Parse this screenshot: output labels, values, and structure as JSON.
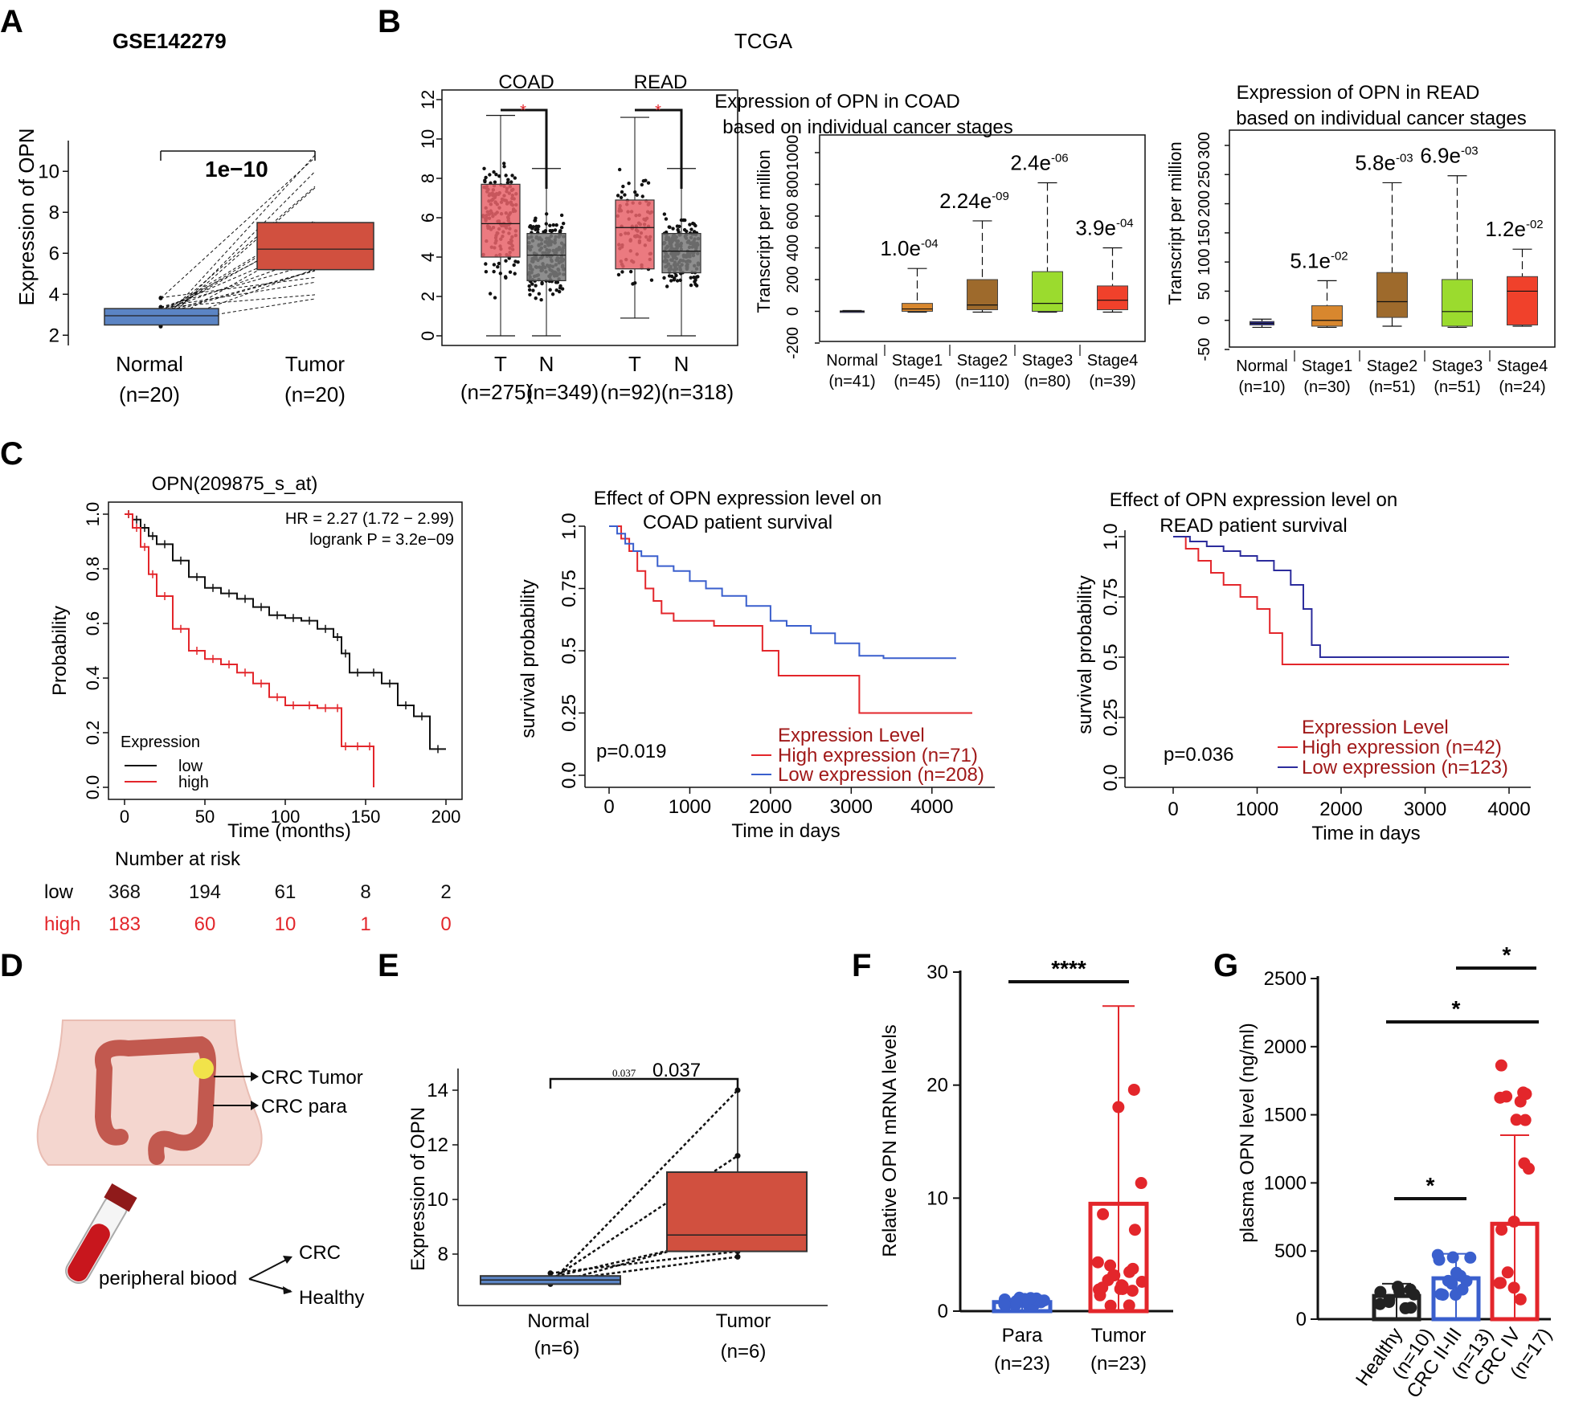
{
  "colors": {
    "red": "#e3262b",
    "darkred": "#c0392b",
    "blue": "#3a5fcd",
    "navy": "#2c2c9c",
    "grey": "#7a7a7a",
    "boxred": "#d1503f",
    "boxblue": "#5b84c4",
    "pink": "#e7636a",
    "orange": "#d8872e",
    "brown": "#9e6a2c",
    "lime": "#9bdb2e",
    "tomato": "#f0412b",
    "black": "#111111"
  },
  "panel_labels": [
    "A",
    "B",
    "C",
    "D",
    "E",
    "F",
    "G"
  ],
  "panelB": {
    "header": "TCGA"
  },
  "panelD": {
    "labels": {
      "tumor": "CRC Tumor",
      "para": "CRC para",
      "blood": "peripheral biood",
      "crc": "CRC",
      "healthy": "Healthy"
    }
  },
  "chart_data": [
    {
      "id": "A",
      "type": "paired-box",
      "title": "GSE142279",
      "ylabel": "Expression of  OPN",
      "ylim": [
        1.5,
        11.5
      ],
      "yticks": [
        2,
        4,
        6,
        8,
        10
      ],
      "categories": [
        "Normal",
        "Tumor"
      ],
      "n_labels": [
        "(n=20)",
        "(n=20)"
      ],
      "stat": "1e−10",
      "boxes": [
        {
          "q1": 2.5,
          "median": 2.95,
          "q3": 3.3,
          "min": 2.3,
          "max": 3.9
        },
        {
          "q1": 5.2,
          "median": 6.2,
          "q3": 7.5,
          "min": 3.4,
          "max": 10.9
        }
      ]
    },
    {
      "id": "B1",
      "type": "box",
      "subtitles": [
        "COAD",
        "READ"
      ],
      "ylim": [
        0,
        12
      ],
      "yticks": [
        0,
        2,
        4,
        6,
        8,
        10,
        12
      ],
      "categories": [
        "T",
        "N",
        "T",
        "N"
      ],
      "n_labels": [
        "(n=275)",
        "(n=349)",
        "(n=92)",
        "(n=318)"
      ],
      "boxes": [
        {
          "min": 0,
          "q1": 4.0,
          "median": 5.7,
          "q3": 7.7,
          "max": 11.2
        },
        {
          "min": 0,
          "q1": 2.8,
          "median": 4.1,
          "q3": 5.2,
          "max": 8.5
        },
        {
          "min": 0.9,
          "q1": 3.4,
          "median": 5.5,
          "q3": 6.9,
          "max": 11.1
        },
        {
          "min": 0,
          "q1": 3.2,
          "median": 4.3,
          "q3": 5.2,
          "max": 8.5
        }
      ],
      "sig_marks": [
        "*",
        "*"
      ]
    },
    {
      "id": "B2",
      "type": "box",
      "title": "Expression of OPN in COAD\nbased on individual cancer stages",
      "ylabel": "Transcript per million",
      "ylim": [
        -200,
        1000
      ],
      "yticks": [
        -200,
        0,
        200,
        400,
        600,
        800,
        1000
      ],
      "categories": [
        "Normal",
        "Stage1",
        "Stage2",
        "Stage3",
        "Stage4"
      ],
      "n_labels": [
        "(n=41)",
        "(n=45)",
        "(n=110)",
        "(n=80)",
        "(n=39)"
      ],
      "boxes": [
        {
          "min": -5,
          "q1": -3,
          "median": 0,
          "q3": 3,
          "max": 5
        },
        {
          "min": -5,
          "q1": 0,
          "median": 15,
          "q3": 50,
          "max": 270
        },
        {
          "min": -5,
          "q1": 10,
          "median": 40,
          "q3": 200,
          "max": 570
        },
        {
          "min": -5,
          "q1": 0,
          "median": 50,
          "q3": 250,
          "max": 810
        },
        {
          "min": -5,
          "q1": 10,
          "median": 70,
          "q3": 160,
          "max": 400
        }
      ],
      "pvalues": [
        null,
        "1.0e-04",
        "2.24e-09",
        "2.4e-06",
        "3.9e-04"
      ]
    },
    {
      "id": "B3",
      "type": "box",
      "title": "Expression of OPN in READ\nbased on individual cancer stages",
      "ylabel": "Transcript per million",
      "ylim": [
        -50,
        300
      ],
      "yticks": [
        -50,
        0,
        50,
        100,
        150,
        200,
        250,
        300
      ],
      "categories": [
        "Normal",
        "Stage1",
        "Stage2",
        "Stage3",
        "Stage4"
      ],
      "n_labels": [
        "(n=10)",
        "(n=30)",
        "(n=51)",
        "(n=51)",
        "(n=24)"
      ],
      "boxes": [
        {
          "min": -12,
          "q1": -8,
          "median": -5,
          "q3": -2,
          "max": 2
        },
        {
          "min": -12,
          "q1": -10,
          "median": 0,
          "q3": 25,
          "max": 68
        },
        {
          "min": -10,
          "q1": 5,
          "median": 32,
          "q3": 82,
          "max": 236
        },
        {
          "min": -12,
          "q1": -10,
          "median": 15,
          "q3": 70,
          "max": 248
        },
        {
          "min": -10,
          "q1": -8,
          "median": 50,
          "q3": 75,
          "max": 122
        }
      ],
      "pvalues": [
        null,
        "5.1e-02",
        "5.8e-03",
        "6.9e-03",
        "1.2e-02"
      ]
    },
    {
      "id": "C1",
      "type": "line",
      "title": "OPN(209875_s_at)",
      "xlabel": "Time (months)",
      "ylabel": "Probability",
      "xlim": [
        0,
        200
      ],
      "ylim": [
        0,
        1
      ],
      "xticks": [
        0,
        50,
        100,
        150,
        200
      ],
      "yticks": [
        0.0,
        0.2,
        0.4,
        0.6,
        0.8,
        1.0
      ],
      "stats": [
        "HR = 2.27 (1.72 − 2.99)",
        "logrank P = 3.2e−09"
      ],
      "legend_title": "Expression",
      "series": [
        {
          "name": "low",
          "x": [
            0,
            5,
            10,
            15,
            20,
            30,
            40,
            50,
            60,
            70,
            80,
            90,
            100,
            110,
            120,
            130,
            135,
            140,
            150,
            160,
            170,
            180,
            190,
            200
          ],
          "y": [
            1.0,
            0.98,
            0.95,
            0.92,
            0.89,
            0.83,
            0.77,
            0.73,
            0.71,
            0.69,
            0.66,
            0.63,
            0.62,
            0.61,
            0.58,
            0.55,
            0.49,
            0.42,
            0.42,
            0.38,
            0.3,
            0.26,
            0.14,
            0.14
          ]
        },
        {
          "name": "high",
          "x": [
            0,
            5,
            10,
            15,
            20,
            30,
            40,
            50,
            60,
            70,
            80,
            90,
            100,
            110,
            120,
            130,
            135,
            140,
            150,
            155
          ],
          "y": [
            1.0,
            0.95,
            0.88,
            0.78,
            0.7,
            0.58,
            0.5,
            0.47,
            0.45,
            0.42,
            0.38,
            0.33,
            0.3,
            0.3,
            0.29,
            0.29,
            0.15,
            0.15,
            0.15,
            0.0
          ]
        }
      ],
      "risk_table": {
        "title": "Number at risk",
        "rows": [
          {
            "label": "low",
            "values": [
              "368",
              "194",
              "61",
              "8",
              "2"
            ]
          },
          {
            "label": "high",
            "values": [
              "183",
              "60",
              "10",
              "1",
              "0"
            ]
          }
        ]
      }
    },
    {
      "id": "C2",
      "type": "line",
      "title": "Effect of OPN expression level on\nCOAD patient survival",
      "xlabel": "Time in days",
      "ylabel": "survival probability",
      "xlim": [
        0,
        4500
      ],
      "ylim": [
        0,
        1
      ],
      "xticks": [
        0,
        1000,
        2000,
        3000,
        4000
      ],
      "yticks": [
        "0.0",
        "0.25",
        "0.5",
        "0.75",
        "1.0"
      ],
      "pvalue": "p=0.019",
      "legend_title": "Expression Level",
      "series": [
        {
          "name": "High expression",
          "n": "(n=71)",
          "x": [
            0,
            150,
            250,
            350,
            450,
            550,
            650,
            800,
            1000,
            1300,
            1700,
            1900,
            2100,
            2400,
            2700,
            3000,
            3100,
            4500
          ],
          "y": [
            1.0,
            0.95,
            0.9,
            0.82,
            0.75,
            0.7,
            0.65,
            0.62,
            0.62,
            0.6,
            0.6,
            0.5,
            0.4,
            0.4,
            0.4,
            0.4,
            0.25,
            0.25
          ]
        },
        {
          "name": "Low expression",
          "n": "(n=208)",
          "x": [
            0,
            100,
            200,
            300,
            400,
            600,
            800,
            1000,
            1200,
            1400,
            1700,
            2000,
            2200,
            2500,
            2800,
            3100,
            3400,
            4300
          ],
          "y": [
            1.0,
            0.97,
            0.93,
            0.9,
            0.88,
            0.84,
            0.82,
            0.78,
            0.75,
            0.72,
            0.68,
            0.62,
            0.6,
            0.57,
            0.53,
            0.48,
            0.47,
            0.47
          ]
        }
      ]
    },
    {
      "id": "C3",
      "type": "line",
      "title": "Effect of OPN expression level on\nREAD patient survival",
      "xlabel": "Time in days",
      "ylabel": "survival probability",
      "xlim": [
        0,
        4000
      ],
      "ylim": [
        0,
        1
      ],
      "xticks": [
        0,
        1000,
        2000,
        3000,
        4000
      ],
      "yticks": [
        "0.0",
        "0.25",
        "0.5",
        "0.75",
        "1.0"
      ],
      "pvalue": "p=0.036",
      "legend_title": "Expression Level",
      "series": [
        {
          "name": "High expression",
          "n": "(n=42)",
          "x": [
            0,
            150,
            300,
            450,
            600,
            800,
            1000,
            1150,
            1300,
            2000,
            3000,
            4000
          ],
          "y": [
            1.0,
            0.95,
            0.9,
            0.85,
            0.8,
            0.75,
            0.7,
            0.6,
            0.47,
            0.47,
            0.47,
            0.47
          ]
        },
        {
          "name": "Low expression",
          "n": "(n=123)",
          "x": [
            0,
            200,
            400,
            600,
            800,
            1000,
            1200,
            1400,
            1550,
            1650,
            1750,
            2500,
            4000
          ],
          "y": [
            1.0,
            0.98,
            0.96,
            0.94,
            0.92,
            0.9,
            0.86,
            0.8,
            0.7,
            0.55,
            0.5,
            0.5,
            0.5
          ]
        }
      ]
    },
    {
      "id": "E",
      "type": "paired-box",
      "ylabel": "Expression of  OPN",
      "ylim": [
        6.5,
        14.5
      ],
      "yticks": [
        8,
        10,
        12,
        14
      ],
      "categories": [
        "Normal",
        "Tumor"
      ],
      "n_labels": [
        "(n=6)",
        "(n=6)"
      ],
      "stat": "0.037",
      "stat_small": "0.037",
      "boxes": [
        {
          "q1": 6.9,
          "median": 7.05,
          "q3": 7.2,
          "min": 6.9,
          "max": 7.4
        },
        {
          "q1": 8.1,
          "median": 8.7,
          "q3": 11.0,
          "min": 7.9,
          "max": 14.0
        }
      ],
      "pairs": [
        [
          6.95,
          14.0
        ],
        [
          7.05,
          11.6
        ],
        [
          7.15,
          8.7
        ],
        [
          6.9,
          8.8
        ],
        [
          7.3,
          8.1
        ],
        [
          7.0,
          7.9
        ]
      ]
    },
    {
      "id": "F",
      "type": "bar",
      "ylabel": "Relative OPN mRNA levels",
      "ylim": [
        0,
        30
      ],
      "yticks": [
        0,
        10,
        20,
        30
      ],
      "categories": [
        "Para",
        "Tumor"
      ],
      "n_labels": [
        "(n=23)",
        "(n=23)"
      ],
      "values": [
        0.8,
        9.5
      ],
      "error_upper": [
        1.1,
        27
      ],
      "significance": "****"
    },
    {
      "id": "G",
      "type": "bar",
      "ylabel": "plasma OPN level (ng/ml)",
      "ylim": [
        0,
        2500
      ],
      "yticks": [
        0,
        500,
        1000,
        1500,
        2000,
        2500
      ],
      "categories": [
        "Healthy",
        "CRC II-III",
        "CRC IV"
      ],
      "n_labels": [
        "(n=10)",
        "(n=13)",
        "(n=17)"
      ],
      "values": [
        170,
        300,
        700
      ],
      "error_upper": [
        260,
        480,
        1350
      ],
      "significance": [
        {
          "pair": "Healthy-CRC II-III",
          "label": "*"
        },
        {
          "pair": "Healthy-CRC IV",
          "label": "*"
        },
        {
          "pair": "CRC II-III-CRC IV",
          "label": "*"
        }
      ]
    }
  ]
}
